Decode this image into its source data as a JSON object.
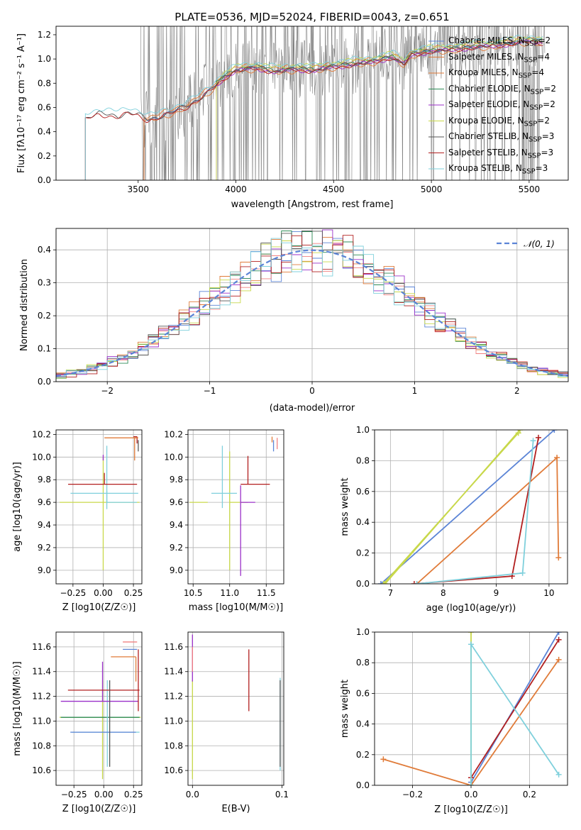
{
  "figure_title": "PLATE=0536, MJD=52024, FIBERID=0043, z=0.651",
  "chart_data": [
    {
      "id": "spectrum",
      "type": "line",
      "xlabel": "wavelength [Angstrom, rest frame]",
      "ylabel": "Flux [fλ10⁻¹⁷ erg cm⁻² s⁻¹ A⁻¹]",
      "xlim": [
        3080,
        5700
      ],
      "ylim": [
        0,
        1.27
      ],
      "xticks": [
        3500,
        4000,
        4500,
        5000,
        5500
      ],
      "yticks": [
        0.0,
        0.2,
        0.4,
        0.6,
        0.8,
        1.0,
        1.2
      ],
      "grid": false,
      "legend_position": "top-right",
      "data_color": "#7f7f7f",
      "model_anchors": [
        [
          3230,
          0.51
        ],
        [
          3300,
          0.55
        ],
        [
          3400,
          0.53
        ],
        [
          3450,
          0.56
        ],
        [
          3500,
          0.54
        ],
        [
          3550,
          0.5
        ],
        [
          3600,
          0.52
        ],
        [
          3650,
          0.55
        ],
        [
          3700,
          0.58
        ],
        [
          3760,
          0.62
        ],
        [
          3800,
          0.66
        ],
        [
          3850,
          0.72
        ],
        [
          3900,
          0.79
        ],
        [
          3950,
          0.86
        ],
        [
          4000,
          0.91
        ],
        [
          4100,
          0.93
        ],
        [
          4200,
          0.9
        ],
        [
          4300,
          0.92
        ],
        [
          4400,
          0.91
        ],
        [
          4500,
          0.94
        ],
        [
          4600,
          0.96
        ],
        [
          4700,
          0.98
        ],
        [
          4800,
          1.02
        ],
        [
          4860,
          0.96
        ],
        [
          4900,
          1.04
        ],
        [
          5000,
          1.07
        ],
        [
          5100,
          1.08
        ],
        [
          5200,
          1.1
        ],
        [
          5300,
          1.11
        ],
        [
          5400,
          1.13
        ],
        [
          5500,
          1.15
        ],
        [
          5560,
          1.14
        ]
      ],
      "data_span": [
        3510,
        5580
      ],
      "series": [
        {
          "name": "Chabrier MILES, N<sub>SSP</sub>=2",
          "color": "#5b84d6",
          "start": 3530,
          "offset": 0.0
        },
        {
          "name": "Salpeter MILES, N<sub>SSP</sub>=4",
          "color": "#e07b39",
          "start": 3530,
          "offset": 0.02
        },
        {
          "name": "Kroupa MILES, N<sub>SSP</sub>=4",
          "color": "#e07b39",
          "start": 3530,
          "offset": -0.02
        },
        {
          "name": "Chabrier ELODIE, N<sub>SSP</sub>=2",
          "color": "#2e8b57",
          "start": 3900,
          "offset": 0.01
        },
        {
          "name": "Salpeter ELODIE, N<sub>SSP</sub>=2",
          "color": "#9b30c9",
          "start": 3900,
          "offset": -0.01
        },
        {
          "name": "Kroupa ELODIE, N<sub>SSP</sub>=2",
          "color": "#c8d84a",
          "start": 3900,
          "offset": 0.03
        },
        {
          "name": "Chabrier STELIB, N<sub>SSP</sub>=3",
          "color": "#555555",
          "start": 3230,
          "offset": 0.0
        },
        {
          "name": "Salpeter STELIB, N<sub>SSP</sub>=3",
          "color": "#b21f1f",
          "start": 3230,
          "offset": -0.01
        },
        {
          "name": "Kroupa STELIB, N<sub>SSP</sub>=3",
          "color": "#7fd0dc",
          "start": 3230,
          "offset": 0.04
        }
      ]
    },
    {
      "id": "residual-histogram",
      "type": "histogram",
      "xlabel": "(data-model)/error",
      "ylabel": "Normed distribution",
      "xlim": [
        -2.5,
        2.5
      ],
      "ylim": [
        0,
        0.465
      ],
      "xticks": [
        -2,
        -1,
        0,
        1,
        2
      ],
      "yticks": [
        0.0,
        0.1,
        0.2,
        0.3,
        0.4
      ],
      "grid": true,
      "legend_position": "top-right",
      "reference_curve": {
        "name": "𝒩(0, 1)",
        "mean": 0,
        "sd": 1,
        "color": "#5b84d6"
      },
      "bin_width": 0.1,
      "series_colors": [
        "#5b84d6",
        "#e07b39",
        "#f08080",
        "#2e8b57",
        "#9b30c9",
        "#c8d84a",
        "#555555",
        "#b21f1f",
        "#7fd0dc"
      ]
    },
    {
      "id": "age-vs-Z",
      "type": "errorbar",
      "xlabel": "Z [log10(Z/Z☉)]",
      "ylabel": "age [log10(age/yr)]",
      "xlim": [
        -0.39,
        0.32
      ],
      "ylim": [
        8.88,
        10.24
      ],
      "xticks": [
        -0.25,
        0.0,
        0.25
      ],
      "yticks": [
        9.0,
        9.2,
        9.4,
        9.6,
        9.8,
        10.0,
        10.2
      ],
      "points": [
        {
          "x": 0.0,
          "y": 9.6,
          "xerr": [
            0.36,
            0.3
          ],
          "yerr": [
            0.6,
            0.4
          ],
          "color": "#c8d84a"
        },
        {
          "x": 0.03,
          "y": 9.68,
          "xerr": [
            0.3,
            0.26
          ],
          "yerr": [
            0.14,
            0.42
          ],
          "color": "#7fd0dc"
        },
        {
          "x": 0.03,
          "y": 9.6,
          "xerr": [
            0.0,
            0.25
          ],
          "yerr": [
            0.0,
            0.1
          ],
          "color": "#7fd0dc"
        },
        {
          "x": 0.0,
          "y": 9.97,
          "xerr": [
            0.0,
            0.0
          ],
          "yerr": [
            0.0,
            0.05
          ],
          "color": "#9b30c9"
        },
        {
          "x": 0.01,
          "y": 9.76,
          "xerr": [
            0.3,
            0.27
          ],
          "yerr": [
            0.0,
            0.1
          ],
          "color": "#b21f1f"
        },
        {
          "x": 0.28,
          "y": 10.18,
          "xerr": [
            0.03,
            0.0
          ],
          "yerr": [
            0.06,
            0.0
          ],
          "color": "#b21f1f"
        },
        {
          "x": 0.27,
          "y": 10.18,
          "xerr": [
            0.0,
            0.0
          ],
          "yerr": [
            0.0,
            0.0
          ],
          "color": "#5b84d6"
        },
        {
          "x": 0.26,
          "y": 10.17,
          "xerr": [
            0.25,
            0.03
          ],
          "yerr": [
            0.2,
            0.0
          ],
          "color": "#e07b39"
        },
        {
          "x": 0.29,
          "y": 10.1,
          "xerr": [
            0.0,
            0.0
          ],
          "yerr": [
            0.05,
            0.05
          ],
          "color": "#555555"
        }
      ]
    },
    {
      "id": "age-vs-mass",
      "type": "errorbar",
      "xlabel": "mass [log10(M/M☉)]",
      "ylabel": "",
      "xlim": [
        10.43,
        11.74
      ],
      "ylim": [
        8.88,
        10.24
      ],
      "xticks": [
        10.5,
        11.0,
        11.5
      ],
      "yticks": [
        9.0,
        9.2,
        9.4,
        9.6,
        9.8,
        10.0,
        10.2
      ],
      "points": [
        {
          "x": 11.0,
          "y": 9.6,
          "xerr": [
            0.0,
            0.25
          ],
          "yerr": [
            0.6,
            0.45
          ],
          "color": "#c8d84a"
        },
        {
          "x": 10.9,
          "y": 9.68,
          "xerr": [
            0.15,
            0.2
          ],
          "yerr": [
            0.13,
            0.42
          ],
          "color": "#7fd0dc"
        },
        {
          "x": 10.7,
          "y": 9.6,
          "xerr": [
            0.25,
            0.0
          ],
          "yerr": [
            0.0,
            0.0
          ],
          "color": "#c8d84a"
        },
        {
          "x": 11.15,
          "y": 9.6,
          "xerr": [
            0.0,
            0.2
          ],
          "yerr": [
            0.65,
            0.15
          ],
          "color": "#9b30c9"
        },
        {
          "x": 11.25,
          "y": 9.76,
          "xerr": [
            0.1,
            0.3
          ],
          "yerr": [
            0.0,
            0.25
          ],
          "color": "#b21f1f"
        },
        {
          "x": 11.58,
          "y": 10.13,
          "xerr": [
            0.0,
            0.0
          ],
          "yerr": [
            0.0,
            0.05
          ],
          "color": "#e07b39"
        },
        {
          "x": 11.6,
          "y": 10.1,
          "xerr": [
            0.0,
            0.0
          ],
          "yerr": [
            0.05,
            0.05
          ],
          "color": "#5b84d6"
        },
        {
          "x": 11.65,
          "y": 10.12,
          "xerr": [
            0.0,
            0.0
          ],
          "yerr": [
            0.05,
            0.05
          ],
          "color": "#f08080"
        }
      ]
    },
    {
      "id": "mass-weight-vs-age",
      "type": "cumulative-line",
      "xlabel": "age (log10(age/yr))",
      "ylabel": "mass weight",
      "xlim": [
        6.7,
        10.35
      ],
      "ylim": [
        0,
        1
      ],
      "xticks": [
        7,
        8,
        9,
        10
      ],
      "yticks": [
        0.0,
        0.2,
        0.4,
        0.6,
        0.8,
        1.0
      ],
      "series": [
        {
          "color": "#5b84d6",
          "points": [
            [
              6.82,
              0
            ],
            [
              10.1,
              1.0
            ]
          ]
        },
        {
          "color": "#c8d84a",
          "points": [
            [
              6.9,
              0
            ],
            [
              9.45,
              1.0
            ]
          ]
        },
        {
          "color": "#c8d84a",
          "points": [
            [
              6.87,
              0
            ],
            [
              9.42,
              0.98
            ]
          ]
        },
        {
          "color": "#e07b39",
          "points": [
            [
              7.5,
              0
            ],
            [
              10.15,
              0.82
            ],
            [
              10.18,
              0.17
            ]
          ]
        },
        {
          "color": "#b21f1f",
          "points": [
            [
              7.45,
              0
            ],
            [
              9.3,
              0.05
            ],
            [
              9.8,
              0.95
            ]
          ]
        },
        {
          "color": "#7fd0dc",
          "points": [
            [
              7.5,
              0
            ],
            [
              9.5,
              0.07
            ],
            [
              9.7,
              0.93
            ]
          ]
        }
      ]
    },
    {
      "id": "mass-vs-Z",
      "type": "errorbar",
      "xlabel": "Z [log10(Z/Z☉)]",
      "ylabel": "mass [log10(M/M☉)]",
      "xlim": [
        -0.4,
        0.32
      ],
      "ylim": [
        10.48,
        11.72
      ],
      "xticks": [
        -0.25,
        0.0,
        0.25
      ],
      "yticks": [
        10.6,
        10.8,
        11.0,
        11.2,
        11.4,
        11.6
      ],
      "points": [
        {
          "x": -0.01,
          "y": 11.03,
          "xerr": [
            0.36,
            0.32
          ],
          "yerr": [
            0.5,
            0.3
          ],
          "color": "#c8d84a"
        },
        {
          "x": 0.0,
          "y": 11.03,
          "xerr": [
            0.36,
            0.3
          ],
          "yerr": [
            0.0,
            0.0
          ],
          "color": "#2e8b57"
        },
        {
          "x": 0.03,
          "y": 10.91,
          "xerr": [
            0.3,
            0.27
          ],
          "yerr": [
            0.28,
            0.42
          ],
          "color": "#7fd0dc"
        },
        {
          "x": 0.02,
          "y": 10.91,
          "xerr": [
            0.3,
            0.25
          ],
          "yerr": [
            0.0,
            0.0
          ],
          "color": "#5b84d6"
        },
        {
          "x": -0.01,
          "y": 11.16,
          "xerr": [
            0.35,
            0.3
          ],
          "yerr": [
            0.0,
            0.32
          ],
          "color": "#9b30c9"
        },
        {
          "x": 0.0,
          "y": 11.25,
          "xerr": [
            0.3,
            0.3
          ],
          "yerr": [
            0.0,
            0.0
          ],
          "color": "#b21f1f"
        },
        {
          "x": 0.29,
          "y": 11.3,
          "xerr": [
            0.0,
            0.0
          ],
          "yerr": [
            0.22,
            0.28
          ],
          "color": "#b21f1f"
        },
        {
          "x": 0.27,
          "y": 11.52,
          "xerr": [
            0.21,
            0.0
          ],
          "yerr": [
            0.2,
            0.0
          ],
          "color": "#e07b39"
        },
        {
          "x": 0.28,
          "y": 11.58,
          "xerr": [
            0.12,
            0.0
          ],
          "yerr": [
            0.0,
            0.0
          ],
          "color": "#5b84d6"
        },
        {
          "x": 0.28,
          "y": 11.64,
          "xerr": [
            0.12,
            0.0
          ],
          "yerr": [
            0.0,
            0.0
          ],
          "color": "#f08080"
        },
        {
          "x": 0.05,
          "y": 10.98,
          "xerr": [
            0.0,
            0.0
          ],
          "yerr": [
            0.35,
            0.35
          ],
          "color": "#555555"
        }
      ]
    },
    {
      "id": "mass-vs-EBV",
      "type": "errorbar",
      "xlabel": "E(B-V)",
      "ylabel": "",
      "xlim": [
        -0.005,
        0.102
      ],
      "ylim": [
        10.48,
        11.72
      ],
      "xticks": [
        0.0,
        0.1
      ],
      "yticks": [
        10.6,
        10.8,
        11.0,
        11.2,
        11.4,
        11.6
      ],
      "points": [
        {
          "x": 0.0,
          "y": 11.03,
          "xerr": [
            0.0,
            0.0
          ],
          "yerr": [
            0.5,
            0.3
          ],
          "color": "#c8d84a"
        },
        {
          "x": 0.0,
          "y": 11.4,
          "xerr": [
            0.0,
            0.0
          ],
          "yerr": [
            0.08,
            0.3
          ],
          "color": "#9b30c9"
        },
        {
          "x": 0.0,
          "y": 11.5,
          "xerr": [
            0.0,
            0.0
          ],
          "yerr": [
            0.1,
            0.1
          ],
          "color": "#f08080"
        },
        {
          "x": 0.063,
          "y": 11.27,
          "xerr": [
            0.0,
            0.0
          ],
          "yerr": [
            0.19,
            0.31
          ],
          "color": "#b21f1f"
        },
        {
          "x": 0.098,
          "y": 11.0,
          "xerr": [
            0.0,
            0.0
          ],
          "yerr": [
            0.4,
            0.35
          ],
          "color": "#7fd0dc"
        },
        {
          "x": 0.098,
          "y": 10.98,
          "xerr": [
            0.0,
            0.0
          ],
          "yerr": [
            0.35,
            0.35
          ],
          "color": "#555555"
        }
      ]
    },
    {
      "id": "mass-weight-vs-Z",
      "type": "cumulative-line",
      "xlabel": "Z [log10(Z/Z☉)]",
      "ylabel": "mass weight",
      "xlim": [
        -0.33,
        0.33
      ],
      "ylim": [
        0,
        1
      ],
      "xticks": [
        -0.2,
        0.0,
        0.2
      ],
      "yticks": [
        0.0,
        0.2,
        0.4,
        0.6,
        0.8,
        1.0
      ],
      "series": [
        {
          "color": "#5b84d6",
          "points": [
            [
              0.0,
              0.02
            ],
            [
              0.3,
              1.0
            ]
          ]
        },
        {
          "color": "#b21f1f",
          "points": [
            [
              0.0,
              0.05
            ],
            [
              0.3,
              0.95
            ]
          ]
        },
        {
          "color": "#e07b39",
          "points": [
            [
              -0.3,
              0.17
            ],
            [
              0.0,
              0.0
            ],
            [
              0.3,
              0.82
            ]
          ]
        },
        {
          "color": "#c8d84a",
          "points": [
            [
              0.0,
              0.0
            ],
            [
              0.0,
              1.0
            ]
          ]
        },
        {
          "color": "#7fd0dc",
          "points": [
            [
              0.0,
              0.0
            ],
            [
              0.0,
              0.92
            ],
            [
              0.3,
              0.07
            ]
          ]
        }
      ]
    }
  ]
}
